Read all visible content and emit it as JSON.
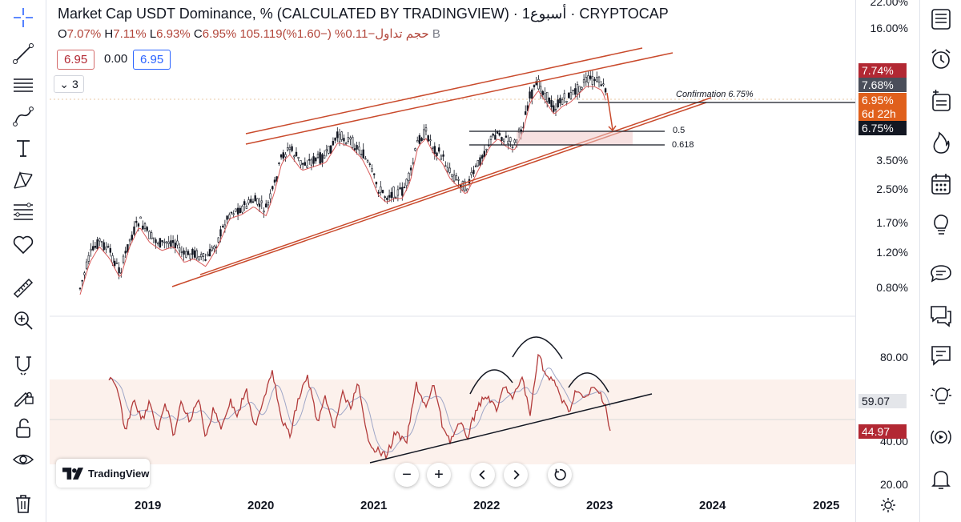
{
  "legend": {
    "title": "Market Cap USDT Dominance, % (CALCULATED BY TRADINGVIEW) · أسبوع1 · CRYPTOCAP",
    "o_label": "O",
    "o_value": "7.07%",
    "h_label": "H",
    "h_value": "7.11%",
    "l_label": "L",
    "l_value": "6.93%",
    "c_label": "C",
    "c_value": "6.95%",
    "volume": "105.119حجم تداول",
    "change": "−0.11% (−1.60%)",
    "currency": "B",
    "bid": "6.95",
    "spread": "0.00",
    "ask": "6.95",
    "collapse_count": "3"
  },
  "price_scale": {
    "ticks": [
      "22.00%",
      "16.00%",
      "3.50%",
      "2.50%",
      "1.70%",
      "1.20%",
      "0.80%"
    ],
    "tags": {
      "high": "7.74%",
      "prev": "7.68%",
      "last": "6.95%",
      "countdown": "6d 22h",
      "confirmation": "6.75%"
    }
  },
  "oscillator_scale": {
    "ticks": [
      "80.00",
      "40.00",
      "20.00"
    ],
    "tags": {
      "signal": "59.07",
      "value": "44.97"
    }
  },
  "annotations": {
    "confirmation": "Confirmation 6.75%",
    "fib_05": "0.5",
    "fib_0618": "0.618"
  },
  "x_axis": [
    "2019",
    "2020",
    "2021",
    "2022",
    "2023",
    "2024",
    "2025"
  ],
  "branding": {
    "logo_text": "TradingView"
  },
  "colors": {
    "channel": "#c94a2c",
    "candle": "#131722",
    "oscillator": "#b23b3b",
    "tag_red": "#b22833",
    "tag_orange": "#e0601c",
    "tag_dark": "#131722"
  }
}
